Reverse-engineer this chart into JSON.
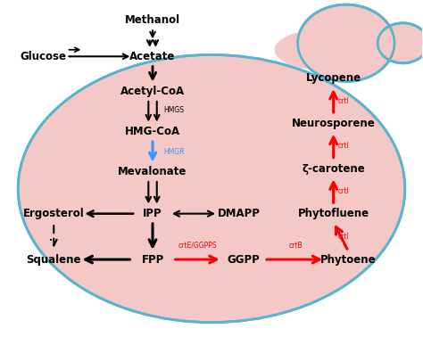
{
  "bg_color": "#f5c8c8",
  "cell_outline_color": "#5ab5cc",
  "node_labels": {
    "Methanol": "Methanol",
    "Glucose": "Glucose",
    "Acetate": "Acetate",
    "AcetylCoA": "Acetyl-CoA",
    "HMGCoA": "HMG-CoA",
    "Mevalonate": "Mevalonate",
    "IPP": "IPP",
    "DMAPP": "DMAPP",
    "Ergosterol": "Ergosterol",
    "FPP": "FPP",
    "Squalene": "Squalene",
    "GGPP": "GGPP",
    "Phytoene": "Phytoene",
    "Phytofluene": "Phytofluene",
    "zcarotene": "ζ-carotene",
    "Neurosporene": "Neurosporene",
    "Lycopene": "Lycopene"
  },
  "figsize": [
    4.74,
    3.78
  ],
  "dpi": 100
}
